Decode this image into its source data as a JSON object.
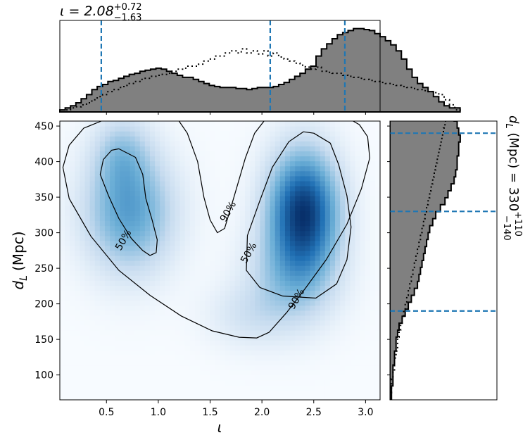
{
  "chart_data": [
    {
      "panel": "joint",
      "type": "heatmap",
      "xlabel": "ι",
      "ylabel": "d",
      "ylabel_sub": "L",
      "ylabel_unit": "(Mpc)",
      "xlim": [
        0.05,
        3.14
      ],
      "ylim": [
        65,
        457
      ],
      "xticks": [
        0.5,
        1.0,
        1.5,
        2.0,
        2.5,
        3.0
      ],
      "xtick_labels": [
        "0.5",
        "1.0",
        "1.5",
        "2.0",
        "2.5",
        "3.0"
      ],
      "yticks": [
        100,
        150,
        200,
        250,
        300,
        350,
        400,
        450
      ],
      "ytick_labels": [
        "100",
        "150",
        "200",
        "250",
        "300",
        "350",
        "400",
        "450"
      ],
      "colormap": [
        "#f7fbff",
        "#c6dbef",
        "#6baed6",
        "#2171b5",
        "#08306b"
      ],
      "density_modes": [
        {
          "x": 0.72,
          "y": 330,
          "sx": 0.28,
          "sy": 55,
          "weight": 0.5
        },
        {
          "x": 2.4,
          "y": 330,
          "sx": 0.22,
          "sy": 55,
          "weight": 1.0
        },
        {
          "x": 2.3,
          "y": 240,
          "sx": 0.28,
          "sy": 45,
          "weight": 0.3
        },
        {
          "x": 1.9,
          "y": 185,
          "sx": 0.28,
          "sy": 30,
          "weight": 0.12
        },
        {
          "x": 0.65,
          "y": 410,
          "sx": 0.18,
          "sy": 35,
          "weight": 0.25
        }
      ],
      "contours": [
        {
          "label": "50%",
          "label_pos": [
            0.66,
            290
          ],
          "path": [
            [
              0.62,
              418
            ],
            [
              0.78,
              406
            ],
            [
              0.85,
              382
            ],
            [
              0.88,
              348
            ],
            [
              0.94,
              318
            ],
            [
              0.99,
              290
            ],
            [
              0.98,
              272
            ],
            [
              0.92,
              268
            ],
            [
              0.85,
              275
            ],
            [
              0.74,
              292
            ],
            [
              0.62,
              320
            ],
            [
              0.52,
              352
            ],
            [
              0.44,
              382
            ],
            [
              0.47,
              403
            ],
            [
              0.55,
              416
            ],
            [
              0.62,
              418
            ]
          ]
        },
        {
          "label": "50%",
          "label_pos": [
            1.87,
            272
          ],
          "path": [
            [
              2.5,
              440
            ],
            [
              2.66,
              426
            ],
            [
              2.74,
              396
            ],
            [
              2.82,
              352
            ],
            [
              2.86,
              308
            ],
            [
              2.82,
              262
            ],
            [
              2.72,
              228
            ],
            [
              2.52,
              208
            ],
            [
              2.2,
              211
            ],
            [
              1.98,
              223
            ],
            [
              1.85,
              247
            ],
            [
              1.86,
              296
            ],
            [
              1.98,
              345
            ],
            [
              2.1,
              392
            ],
            [
              2.26,
              428
            ],
            [
              2.4,
              442
            ],
            [
              2.5,
              440
            ]
          ]
        },
        {
          "label": "90%",
          "label_pos": [
            1.67,
            330
          ],
          "path": [
            [
              1.2,
              457
            ],
            [
              1.28,
              440
            ],
            [
              1.38,
              400
            ],
            [
              1.44,
              350
            ],
            [
              1.5,
              318
            ],
            [
              1.57,
              300
            ],
            [
              1.64,
              306
            ],
            [
              1.72,
              345
            ],
            [
              1.84,
              405
            ],
            [
              1.93,
              440
            ],
            [
              2.02,
              457
            ]
          ]
        },
        {
          "label": "90%",
          "label_pos": [
            2.33,
            207
          ],
          "path": [
            [
              0.45,
              457
            ],
            [
              0.28,
              447
            ],
            [
              0.14,
              423
            ],
            [
              0.08,
              392
            ],
            [
              0.14,
              348
            ],
            [
              0.35,
              295
            ],
            [
              0.62,
              247
            ],
            [
              0.92,
              212
            ],
            [
              1.22,
              183
            ],
            [
              1.52,
              162
            ],
            [
              1.78,
              153
            ],
            [
              1.95,
              152
            ],
            [
              2.07,
              160
            ],
            [
              2.24,
              188
            ],
            [
              2.42,
              222
            ],
            [
              2.62,
              262
            ],
            [
              2.82,
              312
            ],
            [
              2.96,
              362
            ],
            [
              3.04,
              405
            ],
            [
              3.02,
              435
            ],
            [
              2.94,
              452
            ],
            [
              2.88,
              457
            ]
          ]
        }
      ]
    },
    {
      "panel": "top-marginal",
      "type": "bar",
      "title_main": "ι = 2.08",
      "title_sup": "+0.72",
      "title_sub": "−1.63",
      "xlim": [
        0.05,
        3.14
      ],
      "bin_edges_start": 0.05,
      "bin_width": 0.0515,
      "posterior": [
        2,
        4,
        6,
        9,
        13,
        17,
        22,
        25,
        27,
        30,
        31,
        33,
        35,
        37,
        38,
        40,
        41,
        42,
        43,
        42,
        40,
        38,
        36,
        34,
        34,
        32,
        30,
        28,
        26,
        25,
        24,
        24,
        24,
        23,
        23,
        22,
        23,
        24,
        24,
        24,
        25,
        27,
        29,
        32,
        35,
        38,
        42,
        45,
        55,
        62,
        67,
        72,
        76,
        78,
        80,
        82,
        82,
        81,
        80,
        77,
        74,
        70,
        66,
        60,
        52,
        42,
        34,
        28,
        24,
        20,
        15,
        10,
        6,
        4,
        4
      ],
      "prior": [
        0,
        2,
        4,
        5,
        7,
        9,
        12,
        15,
        17,
        20,
        22,
        24,
        26,
        28,
        30,
        32,
        33,
        35,
        36,
        37,
        38,
        40,
        42,
        43,
        45,
        45,
        47,
        50,
        52,
        55,
        55,
        58,
        60,
        58,
        62,
        58,
        60,
        57,
        60,
        55,
        58,
        54,
        52,
        50,
        48,
        46,
        44,
        42,
        44,
        40,
        39,
        38,
        38,
        36,
        35,
        34,
        33,
        32,
        31,
        30,
        29,
        28,
        27,
        26,
        25,
        24,
        23,
        22,
        21,
        20,
        19,
        17,
        12,
        7,
        2
      ],
      "ymax": 90,
      "quantile_lines": [
        0.45,
        2.08,
        2.8
      ]
    },
    {
      "panel": "right-marginal",
      "type": "bar",
      "title_main": "d",
      "title_sub": "L",
      "title_rest": " (Mpc) = 330",
      "title_sup": "+110",
      "title_low": "−140",
      "ylim": [
        65,
        457
      ],
      "bin_edges_start": 65,
      "bin_width": 9.8,
      "posterior": [
        1,
        1,
        2,
        2,
        2,
        3,
        3,
        4,
        4,
        5,
        6,
        8,
        10,
        12,
        14,
        16,
        18,
        19,
        20,
        21,
        22,
        23,
        24,
        25,
        26,
        28,
        30,
        33,
        36,
        38,
        40,
        42,
        43,
        44,
        44,
        45,
        45,
        46,
        45,
        44,
        42,
        40,
        36,
        32,
        30
      ],
      "prior": [
        0,
        1,
        1,
        2,
        3,
        3,
        4,
        5,
        5,
        6,
        7,
        8,
        9,
        10,
        11,
        12,
        13,
        14,
        15,
        16,
        17,
        18,
        19,
        20,
        21,
        22,
        23,
        24,
        25,
        26,
        27,
        28,
        29,
        30,
        31,
        32,
        33,
        34,
        35,
        36,
        37,
        38,
        39,
        40,
        41
      ],
      "xmax": 70,
      "quantile_lines": [
        190,
        330,
        440
      ]
    }
  ]
}
